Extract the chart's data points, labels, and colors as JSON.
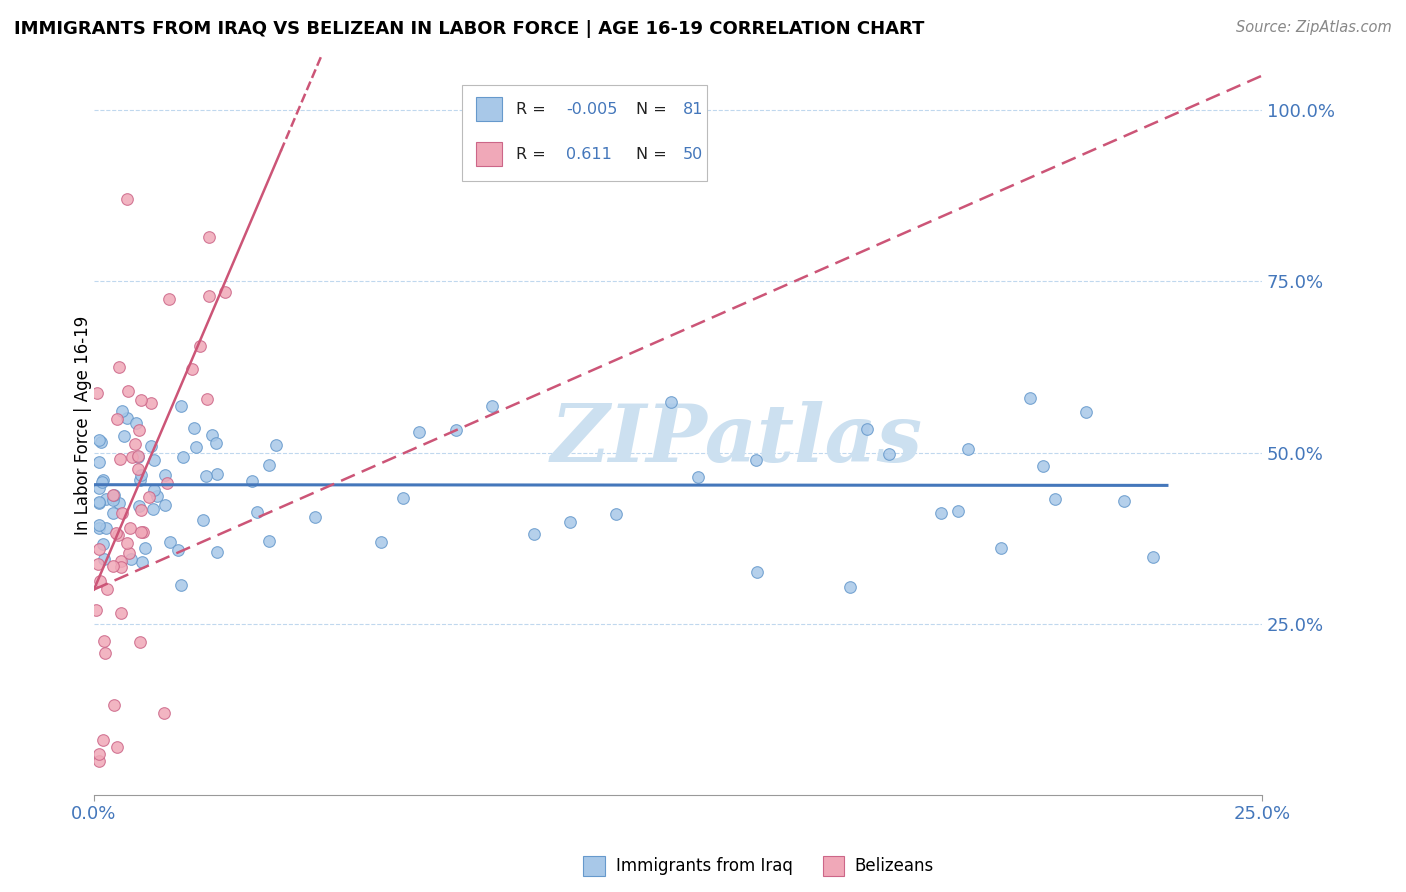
{
  "title": "IMMIGRANTS FROM IRAQ VS BELIZEAN IN LABOR FORCE | AGE 16-19 CORRELATION CHART",
  "source": "Source: ZipAtlas.com",
  "ylabel": "In Labor Force | Age 16-19",
  "xlim": [
    0.0,
    0.25
  ],
  "ylim": [
    0.0,
    1.08
  ],
  "color_iraq": "#a8c8e8",
  "color_belize": "#f0a8b8",
  "color_iraq_edge": "#6699cc",
  "color_belize_edge": "#cc6688",
  "color_iraq_line": "#4477bb",
  "color_belize_line": "#cc5577",
  "color_text_blue": "#4477bb",
  "color_grid": "#c0d8ee",
  "watermark_color": "#cce0f0",
  "iraq_trend_x0": 0.0,
  "iraq_trend_y0": 0.453,
  "iraq_trend_x1": 0.23,
  "iraq_trend_y1": 0.452,
  "belize_trend_x0": 0.0,
  "belize_trend_y0": 0.3,
  "belize_trend_x1": 0.25,
  "belize_trend_y1": 1.05,
  "ytick_positions": [
    0.25,
    0.5,
    0.75,
    1.0
  ],
  "ytick_labels": [
    "25.0%",
    "50.0%",
    "75.0%",
    "100.0%"
  ],
  "xtick_positions": [
    0.0,
    0.25
  ],
  "xtick_labels": [
    "0.0%",
    "25.0%"
  ]
}
